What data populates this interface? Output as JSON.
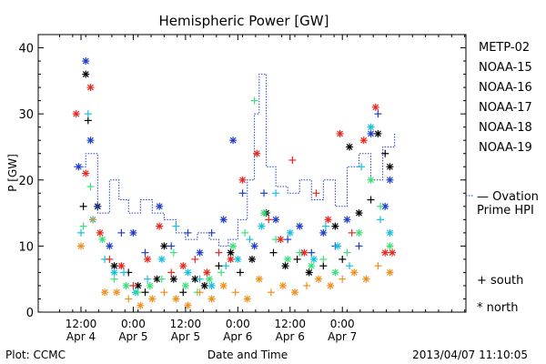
{
  "chart_data": {
    "type": "scatter",
    "title": "Hemispheric Power [GW]",
    "ylabel": "P [GW]",
    "xlabel": "Date and Time",
    "ylim": [
      0,
      42
    ],
    "xlim": [
      0,
      18
    ],
    "grid": false,
    "legend_position": "right",
    "yticks": [
      0,
      10,
      20,
      30,
      40
    ],
    "xticks": [
      {
        "x": 1.8,
        "top": "12:00",
        "bottom": "Apr 4"
      },
      {
        "x": 4.0,
        "top": "0:00",
        "bottom": "Apr 5"
      },
      {
        "x": 6.2,
        "top": "12:00",
        "bottom": "Apr 5"
      },
      {
        "x": 8.4,
        "top": "0:00",
        "bottom": "Apr 6"
      },
      {
        "x": 10.6,
        "top": "12:00",
        "bottom": "Apr 6"
      },
      {
        "x": 12.8,
        "top": "0:00",
        "bottom": "Apr 7"
      }
    ],
    "marker_legend": [
      {
        "symbol": "+",
        "label": "south"
      },
      {
        "symbol": "*",
        "label": "north"
      }
    ],
    "series": [
      {
        "name": "METP-02",
        "color": "#000000",
        "points": [
          [
            2.0,
            36,
            "*"
          ],
          [
            2.1,
            29,
            "+"
          ],
          [
            1.9,
            16,
            "+"
          ],
          [
            2.5,
            16,
            "*"
          ],
          [
            3.2,
            7,
            "*"
          ],
          [
            3.8,
            6,
            "+"
          ],
          [
            4.2,
            4,
            "*"
          ],
          [
            4.5,
            3,
            "+"
          ],
          [
            5.0,
            5,
            "*"
          ],
          [
            5.3,
            10,
            "*"
          ],
          [
            5.7,
            5,
            "*"
          ],
          [
            6.1,
            3,
            "+"
          ],
          [
            6.6,
            5,
            "*"
          ],
          [
            7.0,
            4,
            "*"
          ],
          [
            7.6,
            7,
            "+"
          ],
          [
            8.1,
            9,
            "*"
          ],
          [
            8.5,
            6,
            "+"
          ],
          [
            9.0,
            8,
            "*"
          ],
          [
            9.6,
            15,
            "*"
          ],
          [
            9.9,
            9,
            "+"
          ],
          [
            10.4,
            7,
            "*"
          ],
          [
            10.9,
            8,
            "+"
          ],
          [
            11.4,
            6,
            "*"
          ],
          [
            12.0,
            7,
            "+"
          ],
          [
            12.5,
            13,
            "*"
          ],
          [
            12.8,
            8,
            "+"
          ],
          [
            13.1,
            25,
            "*"
          ],
          [
            13.5,
            15,
            "*"
          ],
          [
            14.0,
            17,
            "+"
          ],
          [
            14.3,
            27,
            "*"
          ],
          [
            14.6,
            24,
            "+"
          ],
          [
            14.8,
            22,
            "*"
          ]
        ]
      },
      {
        "name": "NOAA-15",
        "color": "#1f3fc8",
        "points": [
          [
            1.7,
            22,
            "*"
          ],
          [
            2.0,
            38,
            "*"
          ],
          [
            2.2,
            26,
            "*"
          ],
          [
            2.5,
            16,
            "+"
          ],
          [
            3.0,
            10,
            "*"
          ],
          [
            3.5,
            12,
            "+"
          ],
          [
            4.0,
            12,
            "*"
          ],
          [
            4.5,
            9,
            "+"
          ],
          [
            5.1,
            16,
            "*"
          ],
          [
            5.6,
            10,
            "+"
          ],
          [
            6.3,
            12,
            "+"
          ],
          [
            6.8,
            9,
            "*"
          ],
          [
            7.3,
            12,
            "+"
          ],
          [
            7.8,
            14,
            "*"
          ],
          [
            8.2,
            26,
            "*"
          ],
          [
            8.6,
            18,
            "+"
          ],
          [
            9.1,
            10,
            "*"
          ],
          [
            9.5,
            18,
            "+"
          ],
          [
            10.0,
            14,
            "*"
          ],
          [
            10.5,
            11,
            "+"
          ],
          [
            11.0,
            13,
            "*"
          ],
          [
            11.5,
            9,
            "+"
          ],
          [
            12.0,
            12,
            "*"
          ],
          [
            12.5,
            10,
            "+"
          ],
          [
            13.0,
            14,
            "*"
          ],
          [
            13.5,
            10,
            "+"
          ],
          [
            14.0,
            27,
            "*"
          ],
          [
            14.3,
            30,
            "+"
          ],
          [
            14.6,
            16,
            "*"
          ],
          [
            14.8,
            20,
            "*"
          ]
        ]
      },
      {
        "name": "NOAA-16",
        "color": "#17bfe0",
        "points": [
          [
            1.8,
            12,
            "+"
          ],
          [
            2.1,
            30,
            "+"
          ],
          [
            2.3,
            14,
            "*"
          ],
          [
            2.8,
            8,
            "+"
          ],
          [
            3.2,
            6,
            "*"
          ],
          [
            3.6,
            6,
            "+"
          ],
          [
            4.1,
            3,
            "*"
          ],
          [
            4.6,
            5,
            "+"
          ],
          [
            5.2,
            8,
            "*"
          ],
          [
            5.8,
            13,
            "+"
          ],
          [
            6.3,
            6,
            "*"
          ],
          [
            6.8,
            5,
            "+"
          ],
          [
            7.3,
            4,
            "*"
          ],
          [
            7.9,
            7,
            "+"
          ],
          [
            8.4,
            8,
            "*"
          ],
          [
            8.9,
            11,
            "+"
          ],
          [
            9.4,
            13,
            "*"
          ],
          [
            10.0,
            18,
            "+"
          ],
          [
            10.6,
            12,
            "*"
          ],
          [
            11.1,
            9,
            "+"
          ],
          [
            11.6,
            8,
            "*"
          ],
          [
            12.1,
            13,
            "+"
          ],
          [
            12.6,
            10,
            "*"
          ],
          [
            13.1,
            7,
            "+"
          ],
          [
            13.6,
            22,
            "+"
          ],
          [
            14.0,
            28,
            "*"
          ],
          [
            14.4,
            14,
            "+"
          ],
          [
            14.8,
            12,
            "*"
          ]
        ]
      },
      {
        "name": "NOAA-17",
        "color": "#3de07a",
        "points": [
          [
            1.9,
            13,
            "+"
          ],
          [
            2.2,
            19,
            "+"
          ],
          [
            2.7,
            11,
            "*"
          ],
          [
            3.2,
            5,
            "+"
          ],
          [
            3.7,
            4,
            "*"
          ],
          [
            4.2,
            3,
            "+"
          ],
          [
            4.7,
            4,
            "*"
          ],
          [
            5.2,
            5,
            "+"
          ],
          [
            5.7,
            9,
            "+"
          ],
          [
            6.2,
            4,
            "*"
          ],
          [
            6.7,
            3,
            "+"
          ],
          [
            7.2,
            5,
            "*"
          ],
          [
            7.7,
            6,
            "+"
          ],
          [
            8.2,
            10,
            "*"
          ],
          [
            8.7,
            12,
            "+"
          ],
          [
            9.1,
            32,
            "+"
          ],
          [
            9.5,
            15,
            "*"
          ],
          [
            10.0,
            11,
            "+"
          ],
          [
            10.5,
            8,
            "*"
          ],
          [
            11.0,
            9,
            "+"
          ],
          [
            11.5,
            7,
            "*"
          ],
          [
            12.0,
            8,
            "+"
          ],
          [
            12.5,
            6,
            "*"
          ],
          [
            13.0,
            9,
            "+"
          ],
          [
            13.5,
            12,
            "*"
          ],
          [
            14.0,
            20,
            "*"
          ],
          [
            14.4,
            16,
            "+"
          ],
          [
            14.8,
            10,
            "*"
          ]
        ]
      },
      {
        "name": "NOAA-18",
        "color": "#f0901c",
        "points": [
          [
            1.8,
            10,
            "*"
          ],
          [
            2.3,
            14,
            "+"
          ],
          [
            2.8,
            3,
            "*"
          ],
          [
            3.3,
            3,
            "*"
          ],
          [
            3.8,
            2,
            "+"
          ],
          [
            4.3,
            1,
            "*"
          ],
          [
            4.8,
            2,
            "*"
          ],
          [
            5.3,
            3,
            "+"
          ],
          [
            5.8,
            2,
            "*"
          ],
          [
            6.3,
            1,
            "*"
          ],
          [
            6.8,
            3,
            "+"
          ],
          [
            7.3,
            2,
            "*"
          ],
          [
            7.8,
            4,
            "*"
          ],
          [
            8.3,
            3,
            "+"
          ],
          [
            8.8,
            2,
            "*"
          ],
          [
            9.3,
            5,
            "*"
          ],
          [
            9.8,
            3,
            "+"
          ],
          [
            10.3,
            4,
            "*"
          ],
          [
            10.8,
            3,
            "*"
          ],
          [
            11.3,
            4,
            "+"
          ],
          [
            11.8,
            5,
            "*"
          ],
          [
            12.3,
            4,
            "*"
          ],
          [
            12.8,
            5,
            "+"
          ],
          [
            13.3,
            6,
            "*"
          ],
          [
            13.8,
            5,
            "*"
          ],
          [
            14.3,
            7,
            "+"
          ],
          [
            14.8,
            6,
            "*"
          ]
        ]
      },
      {
        "name": "NOAA-19",
        "color": "#e8281e",
        "points": [
          [
            1.6,
            30,
            "*"
          ],
          [
            2.0,
            21,
            "*"
          ],
          [
            2.2,
            34,
            "*"
          ],
          [
            2.6,
            12,
            "*"
          ],
          [
            3.0,
            8,
            "+"
          ],
          [
            3.5,
            7,
            "*"
          ],
          [
            4.0,
            4,
            "+"
          ],
          [
            4.6,
            8,
            "*"
          ],
          [
            5.1,
            13,
            "*"
          ],
          [
            5.6,
            6,
            "+"
          ],
          [
            6.1,
            7,
            "*"
          ],
          [
            6.6,
            8,
            "+"
          ],
          [
            7.1,
            6,
            "*"
          ],
          [
            7.6,
            9,
            "+"
          ],
          [
            8.1,
            8,
            "*"
          ],
          [
            8.6,
            20,
            "*"
          ],
          [
            9.2,
            24,
            "*"
          ],
          [
            9.7,
            14,
            "+"
          ],
          [
            10.2,
            11,
            "*"
          ],
          [
            10.7,
            23,
            "+"
          ],
          [
            11.2,
            9,
            "*"
          ],
          [
            11.7,
            18,
            "+"
          ],
          [
            12.2,
            14,
            "*"
          ],
          [
            12.7,
            27,
            "*"
          ],
          [
            13.2,
            12,
            "+"
          ],
          [
            13.7,
            26,
            "*"
          ],
          [
            14.2,
            31,
            "*"
          ],
          [
            14.6,
            9,
            "*"
          ],
          [
            14.9,
            9,
            "*"
          ]
        ]
      }
    ],
    "line_series": {
      "name": "Ovation Prime HPI",
      "legend_text": [
        "— Ovation",
        "Prime HPI"
      ],
      "color": "#1f3fc8",
      "style": "dotted-step",
      "points": [
        [
          1.5,
          22
        ],
        [
          2.0,
          24
        ],
        [
          2.5,
          15
        ],
        [
          3.0,
          20
        ],
        [
          3.4,
          17
        ],
        [
          3.8,
          15
        ],
        [
          4.3,
          17
        ],
        [
          4.8,
          15
        ],
        [
          5.3,
          14
        ],
        [
          5.8,
          12
        ],
        [
          6.2,
          11
        ],
        [
          6.7,
          12
        ],
        [
          7.2,
          11
        ],
        [
          7.6,
          10
        ],
        [
          8.0,
          11
        ],
        [
          8.4,
          14
        ],
        [
          8.8,
          20
        ],
        [
          9.1,
          30
        ],
        [
          9.3,
          36
        ],
        [
          9.6,
          22
        ],
        [
          10.0,
          19
        ],
        [
          10.5,
          18
        ],
        [
          11.0,
          20
        ],
        [
          11.5,
          17
        ],
        [
          12.0,
          20
        ],
        [
          12.5,
          16
        ],
        [
          13.0,
          22
        ],
        [
          13.5,
          24
        ],
        [
          14.0,
          20
        ],
        [
          14.5,
          25
        ],
        [
          15.0,
          27
        ]
      ]
    }
  },
  "legend": {
    "entries": [
      {
        "label": "METP-02",
        "color": "#000000"
      },
      {
        "label": "NOAA-15",
        "color": "#1f3fc8"
      },
      {
        "label": "NOAA-16",
        "color": "#17bfe0"
      },
      {
        "label": "NOAA-17",
        "color": "#3de07a"
      },
      {
        "label": "NOAA-18",
        "color": "#f0901c"
      },
      {
        "label": "NOAA-19",
        "color": "#e8281e"
      }
    ]
  },
  "footer": {
    "plot_credit": "Plot: CCMC",
    "timestamp": "2013/04/07 11:10:05"
  }
}
